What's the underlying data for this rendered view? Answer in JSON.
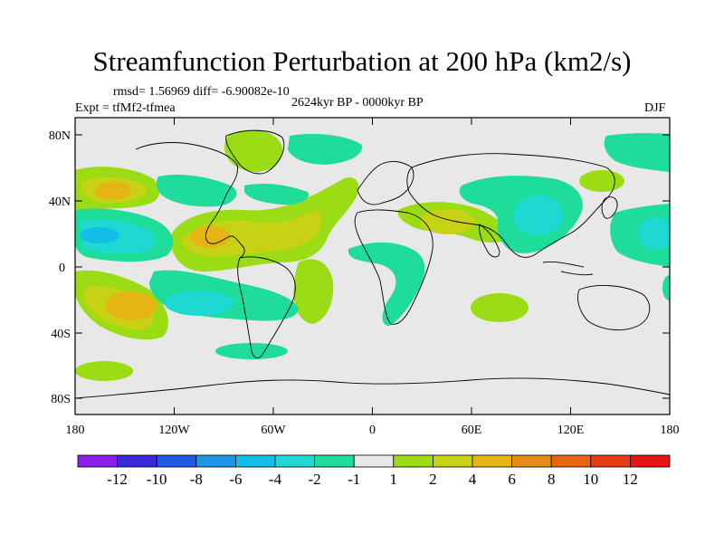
{
  "title": "Streamfunction Perturbation at 200 hPa (km2/s)",
  "stats": "rmsd= 1.56969 diff= -6.90082e-10",
  "experiment": "Expt = tfMf2-tfmea",
  "period": "2624kyr BP - 0000kyr BP",
  "season": "DJF",
  "axes": {
    "y_ticks": [
      "80N",
      "40N",
      "0",
      "40S",
      "80S"
    ],
    "x_ticks": [
      "180",
      "120W",
      "60W",
      "0",
      "60E",
      "120E",
      "180"
    ]
  },
  "colorbar": {
    "labels": [
      "-12",
      "-10",
      "-8",
      "-6",
      "-4",
      "-2",
      "-1",
      "1",
      "2",
      "4",
      "6",
      "8",
      "10",
      "12"
    ],
    "colors": [
      "#8a1ee6",
      "#3c28dc",
      "#1e5ae6",
      "#1e96e6",
      "#14bee6",
      "#1ed8d2",
      "#1edc9a",
      "#e8e8e8",
      "#9bdc14",
      "#c8d214",
      "#e6b414",
      "#e68c14",
      "#e66414",
      "#e63c14",
      "#e61414"
    ]
  },
  "colors": {
    "background": "#e8e8e8",
    "positive_weak": "#9bdc14",
    "positive_mid": "#c8d214",
    "positive_strong": "#e6b414",
    "positive_max": "#e68c14",
    "negative_weak": "#1edc9a",
    "negative_mid": "#1ed8d2",
    "negative_strong": "#14bee6"
  }
}
